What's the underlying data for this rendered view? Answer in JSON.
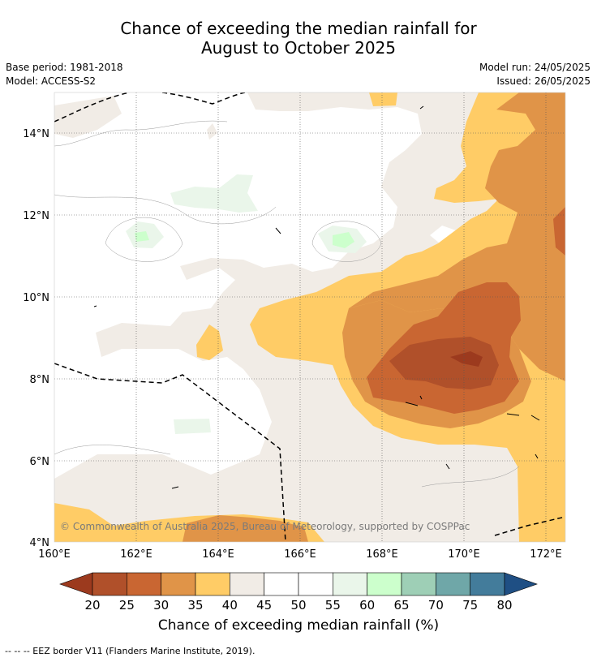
{
  "title_line1": "Chance of exceeding the median rainfall for",
  "title_line2": "August to October 2025",
  "base_period": "Base period: 1981-2018",
  "model": "Model: ACCESS-S2",
  "model_run": "Model run: 24/05/2025",
  "issued": "Issued: 26/05/2025",
  "copyright": "© Commonwealth of Australia 2025, Bureau of Meteorology, supported by COSPPac",
  "lat_labels": [
    "14°N",
    "12°N",
    "10°N",
    "8°N",
    "6°N",
    "4°N"
  ],
  "lon_labels": [
    "160°E",
    "162°E",
    "164°E",
    "166°E",
    "168°E",
    "170°E",
    "172°E"
  ],
  "colorbar": {
    "ticks": [
      "20",
      "25",
      "30",
      "35",
      "40",
      "45",
      "50",
      "55",
      "60",
      "65",
      "70",
      "75",
      "80"
    ],
    "colors": [
      "#9c3a1e",
      "#b0502a",
      "#c96632",
      "#e09448",
      "#ffcc66",
      "#f1ece6",
      "#ffffff",
      "#ffffff",
      "#eaf6ea",
      "#ccffcc",
      "#9ecfb6",
      "#6fa7a8",
      "#437c9b",
      "#1f4f84"
    ],
    "title": "Chance of exceeding median rainfall (%)"
  },
  "footnote": "--  --  -- EEZ border V11 (Flanders Marine Institute, 2019)."
}
